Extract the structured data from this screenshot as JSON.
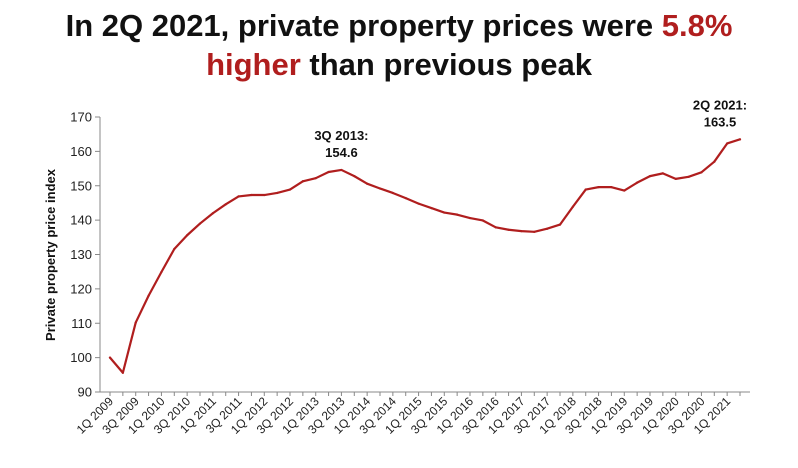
{
  "title": {
    "line1_prefix": "In 2Q 2021, private property prices were ",
    "line1_accent": "5.8%",
    "line2_accent": "higher",
    "line2_suffix": " than previous peak"
  },
  "colors": {
    "accent": "#b01e1e",
    "line": "#b01e1e",
    "axis": "#888888"
  },
  "chart_data": {
    "type": "line",
    "xlabel": "",
    "ylabel": "Private property price index",
    "ylim": [
      90,
      170
    ],
    "yticks": [
      90,
      100,
      110,
      120,
      130,
      140,
      150,
      160,
      170
    ],
    "grid": false,
    "x": [
      "1Q 2009",
      "2Q 2009",
      "3Q 2009",
      "4Q 2009",
      "1Q 2010",
      "2Q 2010",
      "3Q 2010",
      "4Q 2010",
      "1Q 2011",
      "2Q 2011",
      "3Q 2011",
      "4Q 2011",
      "1Q 2012",
      "2Q 2012",
      "3Q 2012",
      "4Q 2012",
      "1Q 2013",
      "2Q 2013",
      "3Q 2013",
      "4Q 2013",
      "1Q 2014",
      "2Q 2014",
      "3Q 2014",
      "4Q 2014",
      "1Q 2015",
      "2Q 2015",
      "3Q 2015",
      "4Q 2015",
      "1Q 2016",
      "2Q 2016",
      "3Q 2016",
      "4Q 2016",
      "1Q 2017",
      "2Q 2017",
      "3Q 2017",
      "4Q 2017",
      "1Q 2018",
      "2Q 2018",
      "3Q 2018",
      "4Q 2018",
      "1Q 2019",
      "2Q 2019",
      "3Q 2019",
      "4Q 2019",
      "1Q 2020",
      "2Q 2020",
      "3Q 2020",
      "4Q 2020",
      "1Q 2021",
      "2Q 2021"
    ],
    "xtick_labels": [
      "1Q 2009",
      "3Q 2009",
      "1Q 2010",
      "3Q 2010",
      "1Q 2011",
      "3Q 2011",
      "1Q 2012",
      "3Q 2012",
      "1Q 2013",
      "3Q 2013",
      "1Q 2014",
      "3Q 2014",
      "1Q 2015",
      "3Q 2015",
      "1Q 2016",
      "3Q 2016",
      "1Q 2017",
      "3Q 2017",
      "1Q 2018",
      "3Q 2018",
      "1Q 2019",
      "3Q 2019",
      "1Q 2020",
      "3Q 2020",
      "1Q 2021"
    ],
    "series": [
      {
        "values": [
          100.0,
          95.6,
          110.2,
          118.0,
          124.9,
          131.6,
          135.6,
          139.0,
          142.0,
          144.6,
          146.9,
          147.3,
          147.3,
          147.9,
          148.9,
          151.3,
          152.2,
          154.0,
          154.6,
          152.8,
          150.6,
          149.2,
          147.9,
          146.4,
          144.8,
          143.5,
          142.2,
          141.6,
          140.6,
          139.9,
          137.9,
          137.2,
          136.8,
          136.6,
          137.5,
          138.7,
          143.9,
          148.9,
          149.6,
          149.6,
          148.6,
          150.9,
          152.8,
          153.6,
          152.0,
          152.6,
          153.9,
          157.0,
          162.3,
          163.5
        ]
      }
    ],
    "annotations": [
      {
        "point": "3Q 2013",
        "line1": "3Q 2013:",
        "line2": "154.6"
      },
      {
        "point": "2Q 2021",
        "line1": "2Q 2021:",
        "line2": "163.5"
      }
    ]
  }
}
